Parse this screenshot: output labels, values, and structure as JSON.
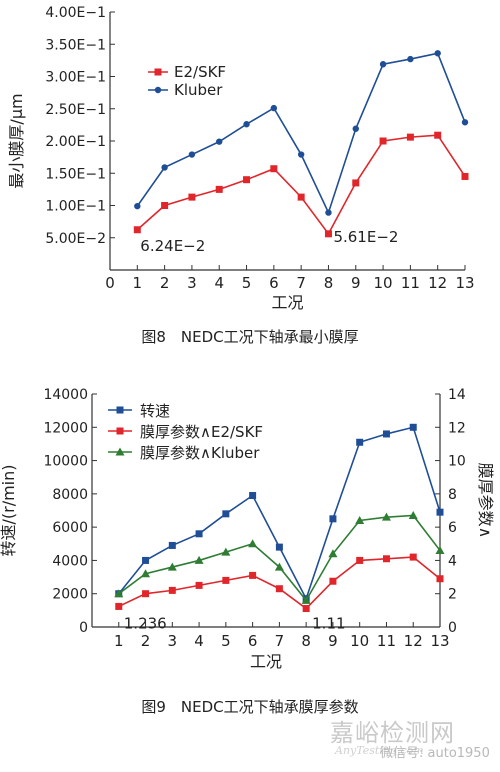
{
  "chart_data": [
    {
      "type": "line",
      "x": [
        1,
        2,
        3,
        4,
        5,
        6,
        7,
        8,
        9,
        10,
        11,
        12,
        13
      ],
      "xlabel": "工况",
      "ylabel": "最小膜厚/μm",
      "xlim": [
        0,
        13
      ],
      "ylim": [
        0,
        0.4
      ],
      "x_ticks": [
        "0",
        "1",
        "2",
        "3",
        "4",
        "5",
        "6",
        "7",
        "8",
        "9",
        "10",
        "11",
        "12",
        "13"
      ],
      "y_ticks": [
        {
          "value": 0.05,
          "label": "5.00E−2"
        },
        {
          "value": 0.1,
          "label": "1.00E−1"
        },
        {
          "value": 0.15,
          "label": "1.50E−1"
        },
        {
          "value": 0.2,
          "label": "2.00E−1"
        },
        {
          "value": 0.25,
          "label": "2.50E−1"
        },
        {
          "value": 0.3,
          "label": "3.00E−1"
        },
        {
          "value": 0.35,
          "label": "3.50E−1"
        },
        {
          "value": 0.4,
          "label": "4.00E−1"
        }
      ],
      "grid": false,
      "legend": "top-left",
      "series": [
        {
          "name": "E2/SKF",
          "color": "#e0262b",
          "marker": "square",
          "values": [
            0.0624,
            0.1,
            0.113,
            0.125,
            0.14,
            0.157,
            0.113,
            0.0561,
            0.135,
            0.2,
            0.206,
            0.209,
            0.145
          ]
        },
        {
          "name": "Kluber",
          "color": "#1f4e96",
          "marker": "circle",
          "values": [
            0.099,
            0.159,
            0.179,
            0.199,
            0.226,
            0.251,
            0.179,
            0.089,
            0.219,
            0.319,
            0.327,
            0.336,
            0.229
          ]
        }
      ],
      "annotations": [
        {
          "text": "6.24E−2",
          "x": 1,
          "y": 0.0624
        },
        {
          "text": "5.61E−2",
          "x": 8,
          "y": 0.0561
        }
      ],
      "caption": "图8　NEDC工况下轴承最小膜厚"
    },
    {
      "type": "line",
      "x": [
        1,
        2,
        3,
        4,
        5,
        6,
        7,
        8,
        9,
        10,
        11,
        12,
        13
      ],
      "xlabel": "工况",
      "ylabel_left": "转速/(r/min)",
      "ylabel_right": "膜厚参数Λ",
      "xlim": [
        0,
        13
      ],
      "ylim_left": [
        0,
        14000
      ],
      "ylim_right": [
        0,
        14
      ],
      "x_ticks": [
        "1",
        "2",
        "3",
        "4",
        "5",
        "6",
        "7",
        "8",
        "9",
        "10",
        "11",
        "12",
        "13"
      ],
      "y_left_ticks": [
        "0",
        "2000",
        "4000",
        "6000",
        "8000",
        "10000",
        "12000",
        "14000"
      ],
      "y_right_ticks": [
        "0",
        "2",
        "4",
        "6",
        "8",
        "10",
        "12",
        "14"
      ],
      "grid": false,
      "legend": "top-left",
      "series": [
        {
          "name": "转速",
          "axis": "left",
          "color": "#1f4e96",
          "marker": "square",
          "values": [
            2000,
            4000,
            4900,
            5600,
            6800,
            7900,
            4800,
            1700,
            6500,
            11100,
            11600,
            12000,
            6900
          ]
        },
        {
          "name": "膜厚参数Λ E2/SKF",
          "axis": "right",
          "color": "#e0262b",
          "marker": "square",
          "values": [
            1.236,
            2.0,
            2.2,
            2.5,
            2.8,
            3.1,
            2.3,
            1.11,
            2.75,
            4.0,
            4.1,
            4.2,
            2.9
          ]
        },
        {
          "name": "膜厚参数Λ Kluber",
          "axis": "right",
          "color": "#2e7d32",
          "marker": "triangle",
          "values": [
            2.0,
            3.2,
            3.6,
            4.0,
            4.5,
            5.0,
            3.6,
            1.6,
            4.4,
            6.4,
            6.6,
            6.7,
            4.6
          ]
        }
      ],
      "legend_labels": [
        "转速",
        "膜厚参数∧E2/SKF",
        "膜厚参数∧Kluber"
      ],
      "right_axis_label_text": "膜厚参数∧",
      "annotations": [
        {
          "text": "1.236",
          "x": 1,
          "y": 1.236
        },
        {
          "text": "1.11",
          "x": 8,
          "y": 1.11
        }
      ],
      "caption": "图9　NEDC工况下轴承膜厚参数"
    }
  ],
  "watermark": {
    "main": "嘉峪检测网",
    "sub": "微信号: auto1950",
    "latin": "AnyTesting.com",
    "wechat": "微信号: auto1950"
  }
}
